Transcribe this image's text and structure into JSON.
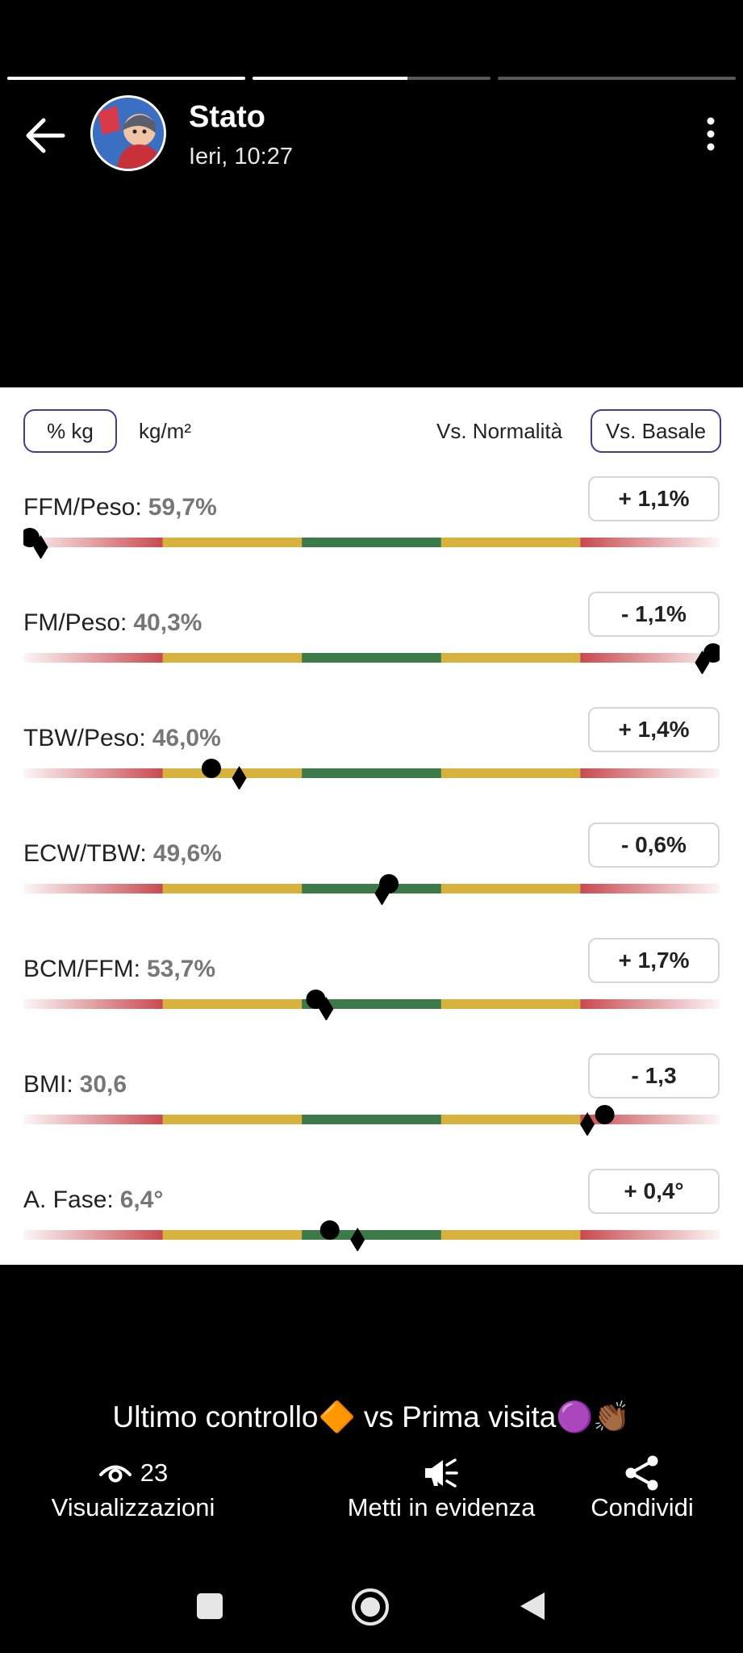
{
  "story": {
    "progress": [
      1.0,
      0.65,
      0.0
    ],
    "title": "Stato",
    "time": "Ieri, 10:27",
    "caption": "Ultimo controllo🔶 vs Prima visita🟣👏🏾"
  },
  "card": {
    "toggles": {
      "unit_pct": "% kg",
      "unit_m2": "kg/m²",
      "vs_norm": "Vs. Normalità",
      "vs_basal": "Vs. Basale"
    },
    "metrics": [
      {
        "label": "FFM/Peso:",
        "value": "59,7%",
        "diff": "+ 1,1%",
        "circle": 0.0,
        "diamond": 0.025
      },
      {
        "label": "FM/Peso:",
        "value": "40,3%",
        "diff": "- 1,1%",
        "circle": 1.0,
        "diamond": 0.975
      },
      {
        "label": "TBW/Peso:",
        "value": "46,0%",
        "diff": "+ 1,4%",
        "circle": 0.27,
        "diamond": 0.31
      },
      {
        "label": "ECW/TBW:",
        "value": "49,6%",
        "diff": "- 0,6%",
        "circle": 0.525,
        "diamond": 0.515
      },
      {
        "label": "BCM/FFM:",
        "value": "53,7%",
        "diff": "+ 1,7%",
        "circle": 0.42,
        "diamond": 0.435
      },
      {
        "label": "BMI:",
        "value": "30,6",
        "diff": "- 1,3",
        "circle": 0.835,
        "diamond": 0.81
      },
      {
        "label": "A. Fase:",
        "value": "6,4°",
        "diff": "+ 0,4°",
        "circle": 0.44,
        "diamond": 0.48
      }
    ],
    "colors": {
      "red": "#c94a50",
      "yellow": "#d8b23e",
      "green": "#3c7a4a"
    }
  },
  "actions": {
    "views_count": "23",
    "views_label": "Visualizzazioni",
    "highlight_label": "Metti in evidenza",
    "share_label": "Condividi"
  }
}
